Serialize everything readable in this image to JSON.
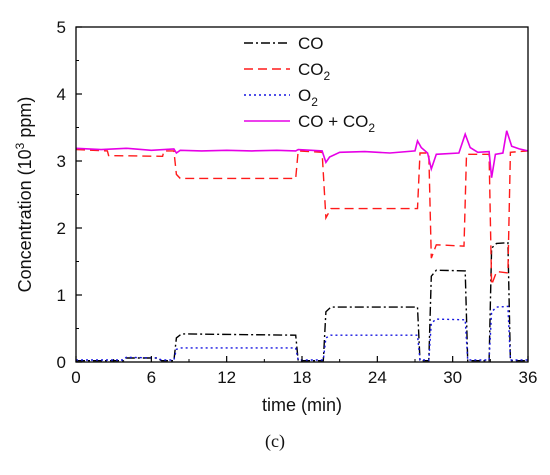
{
  "caption": "(c)",
  "chart_data": {
    "type": "line",
    "xlabel": "time (min)",
    "ylabel": {
      "pre": "Concentration (10",
      "sup": "3",
      "post": " ppm)"
    },
    "xlim": [
      0,
      36
    ],
    "ylim": [
      0,
      5
    ],
    "xticks": [
      "0",
      "6",
      "12",
      "18",
      "24",
      "30",
      "36"
    ],
    "yticks": [
      "0",
      "1",
      "2",
      "3",
      "4",
      "5"
    ],
    "grid": false,
    "legend_position": "top-center",
    "series": [
      {
        "name": "CO",
        "name_sub": "",
        "name_post": "",
        "color": "#000000",
        "dash": "9 3 2 3",
        "points": [
          [
            0,
            0.02
          ],
          [
            3.8,
            0.02
          ],
          [
            4,
            0.06
          ],
          [
            6.5,
            0.06
          ],
          [
            6.8,
            0.02
          ],
          [
            7.8,
            0.02
          ],
          [
            8,
            0.36
          ],
          [
            8.4,
            0.42
          ],
          [
            17.5,
            0.4
          ],
          [
            17.7,
            0.02
          ],
          [
            19.7,
            0.02
          ],
          [
            19.9,
            0.75
          ],
          [
            20.3,
            0.82
          ],
          [
            27.2,
            0.82
          ],
          [
            27.4,
            0.02
          ],
          [
            28.1,
            0.02
          ],
          [
            28.3,
            1.28
          ],
          [
            28.7,
            1.37
          ],
          [
            31,
            1.36
          ],
          [
            31.2,
            0.02
          ],
          [
            32.9,
            0.02
          ],
          [
            33.1,
            1.7
          ],
          [
            33.5,
            1.77
          ],
          [
            34.4,
            1.78
          ],
          [
            34.6,
            0.02
          ],
          [
            36,
            0.02
          ]
        ]
      },
      {
        "name": "CO",
        "name_sub": "2",
        "name_post": "",
        "color": "#ff1a1a",
        "dash": "9 5",
        "points": [
          [
            0,
            3.17
          ],
          [
            2.5,
            3.15
          ],
          [
            2.6,
            3.08
          ],
          [
            6.9,
            3.07
          ],
          [
            7,
            3.15
          ],
          [
            7.8,
            3.15
          ],
          [
            8,
            2.8
          ],
          [
            8.3,
            2.74
          ],
          [
            17.5,
            2.74
          ],
          [
            17.7,
            3.15
          ],
          [
            19.6,
            3.13
          ],
          [
            19.9,
            2.15
          ],
          [
            20.3,
            2.29
          ],
          [
            27.2,
            2.29
          ],
          [
            27.4,
            3.12
          ],
          [
            28.1,
            3.12
          ],
          [
            28.3,
            1.55
          ],
          [
            28.7,
            1.75
          ],
          [
            30.9,
            1.73
          ],
          [
            31.1,
            3.1
          ],
          [
            32.9,
            3.1
          ],
          [
            33.1,
            1.15
          ],
          [
            33.5,
            1.35
          ],
          [
            34.4,
            1.33
          ],
          [
            34.6,
            3.13
          ],
          [
            36,
            3.15
          ]
        ]
      },
      {
        "name": "O",
        "name_sub": "2",
        "name_post": "",
        "color": "#1515e0",
        "dash": "2 3",
        "points": [
          [
            0,
            0.03
          ],
          [
            3.8,
            0.03
          ],
          [
            4,
            0.07
          ],
          [
            6.5,
            0.06
          ],
          [
            6.8,
            0.03
          ],
          [
            7.8,
            0.03
          ],
          [
            8,
            0.19
          ],
          [
            8.4,
            0.21
          ],
          [
            17.5,
            0.21
          ],
          [
            17.7,
            0.03
          ],
          [
            19.7,
            0.03
          ],
          [
            19.9,
            0.36
          ],
          [
            20.3,
            0.4
          ],
          [
            27.2,
            0.4
          ],
          [
            27.4,
            0.03
          ],
          [
            28.1,
            0.03
          ],
          [
            28.3,
            0.58
          ],
          [
            28.7,
            0.64
          ],
          [
            31,
            0.63
          ],
          [
            31.2,
            0.03
          ],
          [
            32.9,
            0.03
          ],
          [
            33.1,
            0.75
          ],
          [
            33.5,
            0.82
          ],
          [
            34.4,
            0.83
          ],
          [
            34.6,
            0.03
          ],
          [
            36,
            0.03
          ]
        ]
      },
      {
        "name": "CO + CO",
        "name_sub": "2",
        "name_post": "",
        "color": "#e600e6",
        "dash": "",
        "points": [
          [
            0,
            3.19
          ],
          [
            2,
            3.17
          ],
          [
            4,
            3.19
          ],
          [
            6,
            3.16
          ],
          [
            7.8,
            3.18
          ],
          [
            8,
            3.12
          ],
          [
            8.3,
            3.16
          ],
          [
            10,
            3.15
          ],
          [
            12,
            3.16
          ],
          [
            14,
            3.15
          ],
          [
            16,
            3.16
          ],
          [
            17.5,
            3.15
          ],
          [
            17.7,
            3.17
          ],
          [
            19.6,
            3.15
          ],
          [
            19.9,
            2.98
          ],
          [
            20.2,
            3.06
          ],
          [
            21,
            3.13
          ],
          [
            23,
            3.14
          ],
          [
            25,
            3.12
          ],
          [
            27,
            3.15
          ],
          [
            27.2,
            3.3
          ],
          [
            27.5,
            3.2
          ],
          [
            28,
            3.12
          ],
          [
            28.3,
            2.88
          ],
          [
            28.7,
            3.1
          ],
          [
            30.5,
            3.12
          ],
          [
            31,
            3.4
          ],
          [
            31.4,
            3.2
          ],
          [
            32,
            3.13
          ],
          [
            32.9,
            3.14
          ],
          [
            33.1,
            2.75
          ],
          [
            33.4,
            3.1
          ],
          [
            34,
            3.12
          ],
          [
            34.3,
            3.45
          ],
          [
            34.7,
            3.22
          ],
          [
            35.3,
            3.18
          ],
          [
            36,
            3.15
          ]
        ]
      }
    ]
  }
}
